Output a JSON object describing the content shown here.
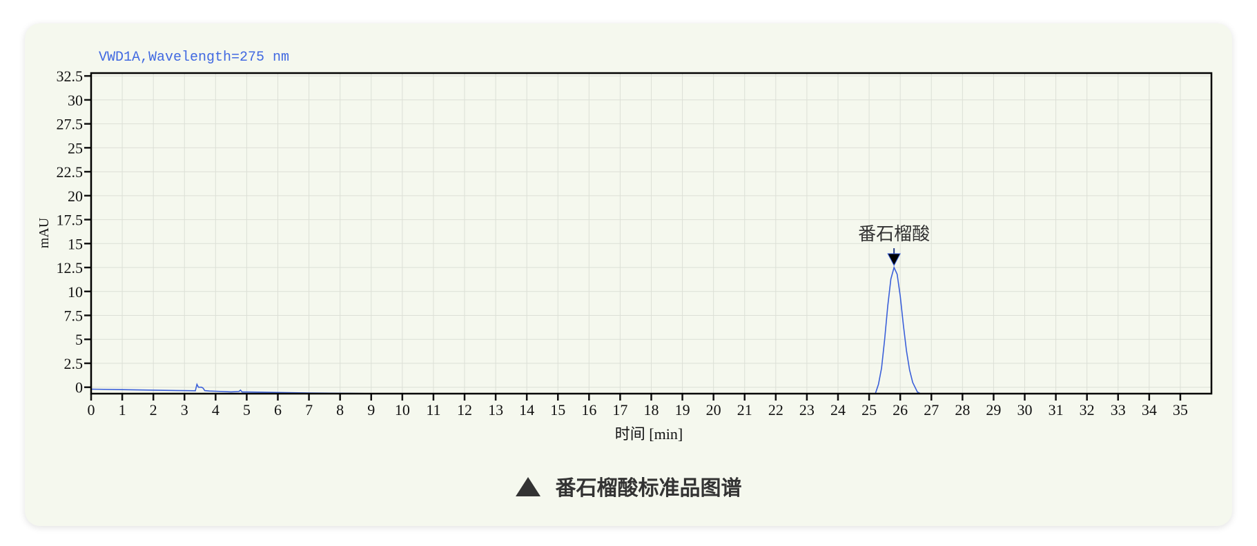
{
  "chart_data": {
    "type": "line",
    "title": "VWD1A,Wavelength=275 nm",
    "xlabel": "时间 [min]",
    "ylabel": "mAU",
    "xlim": [
      0,
      36
    ],
    "ylim": [
      -0.67,
      32.8
    ],
    "xticks": [
      0,
      1,
      2,
      3,
      4,
      5,
      6,
      7,
      8,
      9,
      10,
      11,
      12,
      13,
      14,
      15,
      16,
      17,
      18,
      19,
      20,
      21,
      22,
      23,
      24,
      25,
      26,
      27,
      28,
      29,
      30,
      31,
      32,
      33,
      34,
      35
    ],
    "yticks": [
      0,
      2.5,
      5,
      7.5,
      10,
      12.5,
      15,
      17.5,
      20,
      22.5,
      25,
      27.5,
      30,
      32.5
    ],
    "ytick_labels": [
      "0",
      "2.5",
      "5",
      "7.5",
      "10",
      "12.5",
      "15",
      "17.5",
      "20",
      "22.5",
      "25",
      "27.5",
      "30",
      "32.5"
    ],
    "grid": true,
    "series_color": "#3a5fd9",
    "title_color": "#4169e1",
    "series": [
      {
        "points": [
          [
            0,
            -0.2
          ],
          [
            1,
            -0.25
          ],
          [
            2,
            -0.3
          ],
          [
            3,
            -0.35
          ],
          [
            3.35,
            -0.37
          ],
          [
            3.4,
            0.3
          ],
          [
            3.45,
            0.0
          ],
          [
            3.55,
            0.0
          ],
          [
            3.6,
            -0.1
          ],
          [
            3.65,
            -0.35
          ],
          [
            3.8,
            -0.4
          ],
          [
            4,
            -0.42
          ],
          [
            4.5,
            -0.48
          ],
          [
            4.75,
            -0.45
          ],
          [
            4.8,
            -0.3
          ],
          [
            4.85,
            -0.5
          ],
          [
            5,
            -0.5
          ],
          [
            6,
            -0.55
          ],
          [
            7,
            -0.6
          ],
          [
            8,
            -0.63
          ],
          [
            9,
            -0.66
          ],
          [
            10,
            -0.67
          ],
          [
            25.2,
            -0.67
          ],
          [
            25.3,
            0.3
          ],
          [
            25.4,
            2.0
          ],
          [
            25.5,
            5.0
          ],
          [
            25.6,
            8.5
          ],
          [
            25.7,
            11.3
          ],
          [
            25.8,
            12.5
          ],
          [
            25.9,
            11.8
          ],
          [
            26.0,
            9.5
          ],
          [
            26.1,
            6.5
          ],
          [
            26.2,
            3.8
          ],
          [
            26.3,
            1.8
          ],
          [
            26.4,
            0.5
          ],
          [
            26.55,
            -0.5
          ],
          [
            26.65,
            -0.67
          ],
          [
            36,
            -0.67
          ]
        ]
      }
    ],
    "annotations": [
      {
        "label": "番石榴酸",
        "x": 25.8,
        "y": 12.5,
        "marker": "down-triangle"
      }
    ]
  },
  "caption": {
    "icon": "triangle-up-icon",
    "text": "番石榴酸标准品图谱"
  }
}
